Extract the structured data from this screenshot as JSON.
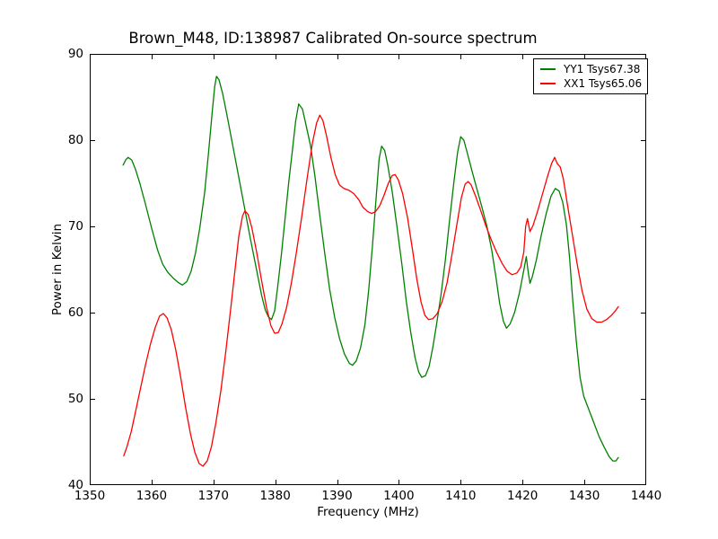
{
  "title": "Brown_M48, ID:138987 Calibrated On-source spectrum",
  "chart_data": {
    "type": "line",
    "title": "Brown_M48, ID:138987 Calibrated On-source spectrum",
    "xlabel": "Frequency (MHz)",
    "ylabel": "Power in Kelvin",
    "xlim": [
      1350,
      1440
    ],
    "ylim": [
      40,
      90
    ],
    "x_ticks": [
      1350,
      1360,
      1370,
      1380,
      1390,
      1400,
      1410,
      1420,
      1430,
      1440
    ],
    "y_ticks": [
      40,
      50,
      60,
      70,
      80,
      90
    ],
    "grid": false,
    "legend_position": "upper right",
    "frame_color": "#000000",
    "background": "#ffffff",
    "series": [
      {
        "key": "yy1",
        "name": "YY1 Tsys67.38",
        "color": "#008000",
        "points": [
          [
            1355.4,
            77.1
          ],
          [
            1355.8,
            77.7
          ],
          [
            1356.2,
            78.0
          ],
          [
            1356.8,
            77.7
          ],
          [
            1357.4,
            76.6
          ],
          [
            1358.1,
            75.0
          ],
          [
            1359.0,
            72.6
          ],
          [
            1360.0,
            69.8
          ],
          [
            1361.0,
            67.2
          ],
          [
            1361.8,
            65.6
          ],
          [
            1362.6,
            64.7
          ],
          [
            1363.5,
            64.0
          ],
          [
            1364.3,
            63.5
          ],
          [
            1365.0,
            63.2
          ],
          [
            1365.7,
            63.6
          ],
          [
            1366.4,
            64.8
          ],
          [
            1367.1,
            66.9
          ],
          [
            1367.8,
            69.8
          ],
          [
            1368.6,
            74.0
          ],
          [
            1369.2,
            78.5
          ],
          [
            1369.8,
            83.2
          ],
          [
            1370.2,
            86.2
          ],
          [
            1370.5,
            87.4
          ],
          [
            1370.9,
            87.0
          ],
          [
            1371.5,
            85.4
          ],
          [
            1372.2,
            82.9
          ],
          [
            1373.0,
            79.9
          ],
          [
            1374.0,
            76.1
          ],
          [
            1375.0,
            72.3
          ],
          [
            1376.0,
            68.5
          ],
          [
            1377.0,
            64.9
          ],
          [
            1377.8,
            62.0
          ],
          [
            1378.4,
            60.3
          ],
          [
            1378.9,
            59.5
          ],
          [
            1379.4,
            59.2
          ],
          [
            1379.9,
            60.2
          ],
          [
            1380.4,
            63.0
          ],
          [
            1381.0,
            66.8
          ],
          [
            1381.6,
            71.0
          ],
          [
            1382.2,
            75.2
          ],
          [
            1382.8,
            79.0
          ],
          [
            1383.3,
            82.2
          ],
          [
            1383.8,
            84.2
          ],
          [
            1384.4,
            83.6
          ],
          [
            1385.0,
            81.7
          ],
          [
            1385.7,
            79.4
          ],
          [
            1386.4,
            75.9
          ],
          [
            1387.2,
            71.3
          ],
          [
            1388.0,
            66.9
          ],
          [
            1388.8,
            62.7
          ],
          [
            1389.6,
            59.5
          ],
          [
            1390.4,
            57.0
          ],
          [
            1391.2,
            55.2
          ],
          [
            1392.0,
            54.1
          ],
          [
            1392.5,
            53.9
          ],
          [
            1393.1,
            54.4
          ],
          [
            1393.8,
            55.9
          ],
          [
            1394.5,
            58.6
          ],
          [
            1395.1,
            62.5
          ],
          [
            1395.7,
            67.5
          ],
          [
            1396.3,
            73.2
          ],
          [
            1396.8,
            77.8
          ],
          [
            1397.2,
            79.3
          ],
          [
            1397.7,
            78.8
          ],
          [
            1398.2,
            77.1
          ],
          [
            1398.9,
            74.1
          ],
          [
            1399.7,
            69.9
          ],
          [
            1400.5,
            65.5
          ],
          [
            1401.2,
            61.3
          ],
          [
            1401.9,
            57.8
          ],
          [
            1402.6,
            54.8
          ],
          [
            1403.2,
            53.1
          ],
          [
            1403.7,
            52.5
          ],
          [
            1404.3,
            52.7
          ],
          [
            1404.9,
            53.8
          ],
          [
            1405.5,
            56.0
          ],
          [
            1406.1,
            58.7
          ],
          [
            1406.8,
            62.0
          ],
          [
            1407.5,
            66.0
          ],
          [
            1408.2,
            70.7
          ],
          [
            1408.9,
            75.2
          ],
          [
            1409.5,
            78.6
          ],
          [
            1410.0,
            80.4
          ],
          [
            1410.5,
            80.0
          ],
          [
            1411.0,
            78.7
          ],
          [
            1411.8,
            76.5
          ],
          [
            1412.6,
            74.4
          ],
          [
            1413.4,
            72.3
          ],
          [
            1414.2,
            70.1
          ],
          [
            1415.0,
            67.3
          ],
          [
            1415.7,
            64.1
          ],
          [
            1416.3,
            61.1
          ],
          [
            1416.9,
            59.0
          ],
          [
            1417.4,
            58.2
          ],
          [
            1418.0,
            58.7
          ],
          [
            1418.7,
            60.0
          ],
          [
            1419.5,
            62.3
          ],
          [
            1420.2,
            64.9
          ],
          [
            1420.6,
            66.5
          ],
          [
            1420.9,
            64.8
          ],
          [
            1421.2,
            63.4
          ],
          [
            1421.6,
            64.2
          ],
          [
            1422.2,
            66.0
          ],
          [
            1423.0,
            68.9
          ],
          [
            1423.8,
            71.4
          ],
          [
            1424.6,
            73.5
          ],
          [
            1425.3,
            74.4
          ],
          [
            1425.9,
            74.1
          ],
          [
            1426.5,
            72.8
          ],
          [
            1427.1,
            70.2
          ],
          [
            1427.6,
            66.4
          ],
          [
            1428.1,
            61.6
          ],
          [
            1428.7,
            56.6
          ],
          [
            1429.3,
            52.5
          ],
          [
            1429.9,
            50.3
          ],
          [
            1430.6,
            49.0
          ],
          [
            1431.5,
            47.3
          ],
          [
            1432.4,
            45.6
          ],
          [
            1433.2,
            44.4
          ],
          [
            1434.0,
            43.3
          ],
          [
            1434.6,
            42.8
          ],
          [
            1435.1,
            42.8
          ],
          [
            1435.5,
            43.2
          ]
        ]
      },
      {
        "key": "xx1",
        "name": "XX1 Tsys65.06",
        "color": "#ff0000",
        "points": [
          [
            1355.5,
            43.4
          ],
          [
            1356.0,
            44.4
          ],
          [
            1356.7,
            46.2
          ],
          [
            1357.4,
            48.5
          ],
          [
            1358.2,
            51.2
          ],
          [
            1359.0,
            53.9
          ],
          [
            1359.8,
            56.3
          ],
          [
            1360.6,
            58.3
          ],
          [
            1361.3,
            59.6
          ],
          [
            1361.9,
            59.9
          ],
          [
            1362.5,
            59.4
          ],
          [
            1363.2,
            58.0
          ],
          [
            1363.9,
            55.7
          ],
          [
            1364.7,
            52.5
          ],
          [
            1365.5,
            49.0
          ],
          [
            1366.3,
            45.9
          ],
          [
            1367.0,
            43.8
          ],
          [
            1367.7,
            42.5
          ],
          [
            1368.3,
            42.2
          ],
          [
            1369.0,
            42.8
          ],
          [
            1369.7,
            44.5
          ],
          [
            1370.4,
            47.2
          ],
          [
            1371.2,
            50.9
          ],
          [
            1372.0,
            55.5
          ],
          [
            1372.8,
            60.5
          ],
          [
            1373.5,
            65.0
          ],
          [
            1374.1,
            68.8
          ],
          [
            1374.7,
            71.2
          ],
          [
            1375.1,
            71.8
          ],
          [
            1375.6,
            71.4
          ],
          [
            1376.2,
            69.9
          ],
          [
            1377.0,
            67.0
          ],
          [
            1377.8,
            63.7
          ],
          [
            1378.6,
            60.6
          ],
          [
            1379.3,
            58.5
          ],
          [
            1379.9,
            57.6
          ],
          [
            1380.5,
            57.7
          ],
          [
            1381.1,
            58.7
          ],
          [
            1381.8,
            60.5
          ],
          [
            1382.6,
            63.4
          ],
          [
            1383.4,
            66.9
          ],
          [
            1384.3,
            71.2
          ],
          [
            1385.2,
            75.8
          ],
          [
            1386.0,
            79.6
          ],
          [
            1386.7,
            82.0
          ],
          [
            1387.2,
            82.9
          ],
          [
            1387.7,
            82.3
          ],
          [
            1388.3,
            80.5
          ],
          [
            1389.0,
            78.0
          ],
          [
            1389.7,
            76.0
          ],
          [
            1390.4,
            74.8
          ],
          [
            1391.1,
            74.4
          ],
          [
            1391.9,
            74.2
          ],
          [
            1392.7,
            73.8
          ],
          [
            1393.5,
            73.1
          ],
          [
            1394.2,
            72.2
          ],
          [
            1395.0,
            71.7
          ],
          [
            1395.6,
            71.5
          ],
          [
            1396.2,
            71.7
          ],
          [
            1396.9,
            72.4
          ],
          [
            1397.6,
            73.6
          ],
          [
            1398.3,
            75.0
          ],
          [
            1398.9,
            75.9
          ],
          [
            1399.4,
            76.0
          ],
          [
            1399.9,
            75.4
          ],
          [
            1400.6,
            73.8
          ],
          [
            1401.4,
            71.0
          ],
          [
            1402.2,
            67.3
          ],
          [
            1402.9,
            63.9
          ],
          [
            1403.6,
            61.2
          ],
          [
            1404.2,
            59.7
          ],
          [
            1404.8,
            59.2
          ],
          [
            1405.5,
            59.3
          ],
          [
            1406.2,
            59.9
          ],
          [
            1407.0,
            61.3
          ],
          [
            1407.8,
            63.5
          ],
          [
            1408.6,
            66.8
          ],
          [
            1409.4,
            70.3
          ],
          [
            1410.1,
            73.3
          ],
          [
            1410.7,
            74.9
          ],
          [
            1411.2,
            75.2
          ],
          [
            1411.7,
            74.8
          ],
          [
            1412.4,
            73.5
          ],
          [
            1413.2,
            71.9
          ],
          [
            1414.0,
            70.2
          ],
          [
            1414.9,
            68.5
          ],
          [
            1415.8,
            67.0
          ],
          [
            1416.7,
            65.7
          ],
          [
            1417.5,
            64.8
          ],
          [
            1418.3,
            64.4
          ],
          [
            1419.1,
            64.6
          ],
          [
            1419.7,
            65.3
          ],
          [
            1420.2,
            67.0
          ],
          [
            1420.5,
            70.0
          ],
          [
            1420.8,
            70.9
          ],
          [
            1421.2,
            69.4
          ],
          [
            1421.7,
            70.1
          ],
          [
            1422.4,
            71.7
          ],
          [
            1423.2,
            73.7
          ],
          [
            1424.0,
            75.7
          ],
          [
            1424.7,
            77.3
          ],
          [
            1425.2,
            78.0
          ],
          [
            1425.6,
            77.3
          ],
          [
            1426.1,
            76.9
          ],
          [
            1426.6,
            75.5
          ],
          [
            1427.2,
            72.8
          ],
          [
            1428.0,
            69.3
          ],
          [
            1428.8,
            65.8
          ],
          [
            1429.6,
            62.6
          ],
          [
            1430.4,
            60.4
          ],
          [
            1431.2,
            59.3
          ],
          [
            1432.0,
            58.9
          ],
          [
            1432.8,
            58.9
          ],
          [
            1433.6,
            59.2
          ],
          [
            1434.4,
            59.7
          ],
          [
            1435.0,
            60.2
          ],
          [
            1435.5,
            60.7
          ]
        ]
      }
    ]
  },
  "legend": {
    "items": [
      {
        "label": "YY1 Tsys67.38",
        "color": "#008000"
      },
      {
        "label": "XX1 Tsys65.06",
        "color": "#ff0000"
      }
    ]
  }
}
